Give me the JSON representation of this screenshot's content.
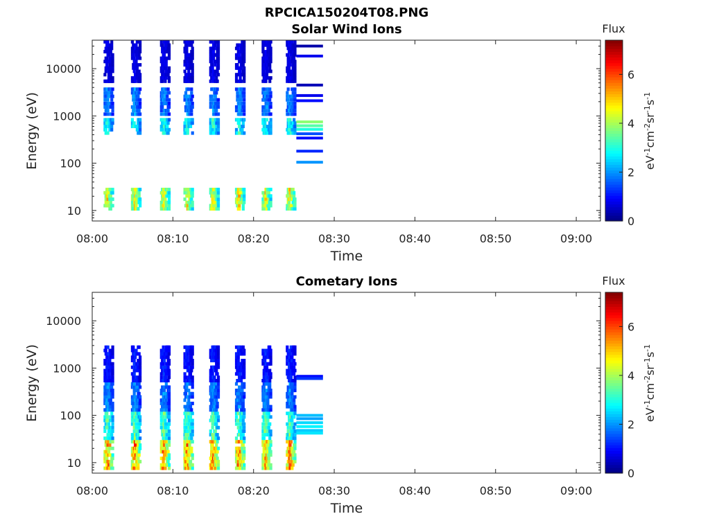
{
  "figure_title": "RPCICA150204T08.PNG",
  "chart_data": [
    {
      "type": "heatmap",
      "title": "Solar Wind Ions",
      "xlabel": "Time",
      "ylabel": "Energy (eV)",
      "xlim": [
        "08:00",
        "09:03"
      ],
      "xticks": [
        "08:00",
        "08:10",
        "08:20",
        "08:30",
        "08:40",
        "08:50",
        "09:00"
      ],
      "ylim": [
        6,
        40000
      ],
      "yscale": "log",
      "yticks": [
        "10",
        "100",
        "1000",
        "10000"
      ],
      "colorbar": {
        "label": "Flux",
        "units": "eV-1cm-2sr-1s-1",
        "range": [
          0,
          7.4
        ],
        "ticks": [
          "0",
          "2",
          "4",
          "6"
        ],
        "colormap": "jet"
      },
      "data_end_time": "08:28.6",
      "sweep_start_minutes": [
        1.4,
        4.8,
        8.4,
        11.3,
        14.5,
        17.7,
        21.0,
        24.0
      ],
      "bands": [
        {
          "energy_range_eV": [
            10,
            30
          ],
          "flux": 4.5,
          "description": "strongest low-energy band"
        },
        {
          "energy_range_eV": [
            400,
            900
          ],
          "flux": 3.0
        },
        {
          "energy_range_eV": [
            1000,
            4000
          ],
          "flux": 2.0
        },
        {
          "energy_range_eV": [
            5000,
            40000
          ],
          "flux": 0.8
        }
      ],
      "steady_segment": {
        "time_range": [
          "08:25.3",
          "08:28.6"
        ],
        "lines": [
          {
            "energy_eV": 30000,
            "flux": 0.3
          },
          {
            "energy_eV": 18500,
            "flux": 0.8
          },
          {
            "energy_eV": 4500,
            "flux": 0.4
          },
          {
            "energy_eV": 2700,
            "flux": 0.8
          },
          {
            "energy_eV": 2100,
            "flux": 1.0
          },
          {
            "energy_eV": 750,
            "flux": 3.8
          },
          {
            "energy_eV": 620,
            "flux": 3.4
          },
          {
            "energy_eV": 520,
            "flux": 3.0
          },
          {
            "energy_eV": 420,
            "flux": 1.5
          },
          {
            "energy_eV": 340,
            "flux": 1.0
          },
          {
            "energy_eV": 180,
            "flux": 1.2
          },
          {
            "energy_eV": 105,
            "flux": 2.0
          }
        ]
      }
    },
    {
      "type": "heatmap",
      "title": "Cometary Ions",
      "xlabel": "Time",
      "ylabel": "Energy (eV)",
      "xlim": [
        "08:00",
        "09:03"
      ],
      "xticks": [
        "08:00",
        "08:10",
        "08:20",
        "08:30",
        "08:40",
        "08:50",
        "09:00"
      ],
      "ylim": [
        6,
        40000
      ],
      "yscale": "log",
      "yticks": [
        "10",
        "100",
        "1000",
        "10000"
      ],
      "colorbar": {
        "label": "Flux",
        "units": "eV-1cm-2sr-1s-1",
        "range": [
          0,
          7.4
        ],
        "ticks": [
          "0",
          "2",
          "4",
          "6"
        ],
        "colormap": "jet"
      },
      "data_end_time": "08:28.6",
      "sweep_start_minutes": [
        1.4,
        4.8,
        8.4,
        11.3,
        14.5,
        17.7,
        21.0,
        24.0
      ],
      "bands": [
        {
          "energy_range_eV": [
            7,
            30
          ],
          "flux": 5.5,
          "description": "strongest low-energy band"
        },
        {
          "energy_range_eV": [
            30,
            120
          ],
          "flux": 3.5
        },
        {
          "energy_range_eV": [
            120,
            500
          ],
          "flux": 2.0
        },
        {
          "energy_range_eV": [
            500,
            3000
          ],
          "flux": 1.2
        }
      ],
      "steady_segment": {
        "time_range": [
          "08:25.3",
          "08:28.6"
        ],
        "lines": [
          {
            "energy_eV": 670,
            "flux": 1.0
          },
          {
            "energy_eV": 600,
            "flux": 1.3
          },
          {
            "energy_eV": 100,
            "flux": 2.3
          },
          {
            "energy_eV": 85,
            "flux": 2.1
          },
          {
            "energy_eV": 70,
            "flux": 2.5
          },
          {
            "energy_eV": 58,
            "flux": 2.7
          },
          {
            "energy_eV": 48,
            "flux": 2.4
          },
          {
            "energy_eV": 42,
            "flux": 2.6
          }
        ]
      }
    }
  ]
}
